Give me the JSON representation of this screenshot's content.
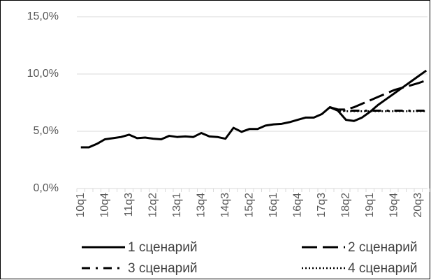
{
  "chart_data": {
    "type": "line",
    "categories": [
      "10q1",
      null,
      null,
      "10q4",
      null,
      null,
      "11q3",
      null,
      null,
      "12q2",
      null,
      null,
      "13q1",
      null,
      null,
      "13q4",
      null,
      null,
      "14q3",
      null,
      null,
      "15q2",
      null,
      null,
      "16q1",
      null,
      null,
      "16q4",
      null,
      null,
      "17q3",
      null,
      null,
      "18q2",
      null,
      null,
      "19q1",
      null,
      null,
      "19q4",
      null,
      null,
      "20q3",
      null
    ],
    "series": [
      {
        "name": "1 сценарий",
        "color": "#000000",
        "values": [
          3.6,
          3.6,
          3.9,
          4.3,
          4.4,
          4.5,
          4.7,
          4.4,
          4.45,
          4.35,
          4.3,
          4.6,
          4.5,
          4.55,
          4.5,
          4.85,
          4.55,
          4.5,
          4.35,
          5.3,
          4.95,
          5.2,
          5.2,
          5.5,
          5.6,
          5.65,
          5.8,
          6.0,
          6.2,
          6.2,
          6.5,
          7.1,
          6.8,
          6.0,
          5.9,
          6.2,
          6.7,
          7.3,
          7.8,
          8.3,
          8.8,
          9.3,
          9.8,
          10.3
        ]
      },
      {
        "name": "2 сценарий",
        "color": "#000000",
        "values": [
          null,
          null,
          null,
          null,
          null,
          null,
          null,
          null,
          null,
          null,
          null,
          null,
          null,
          null,
          null,
          null,
          null,
          null,
          null,
          null,
          null,
          null,
          null,
          null,
          null,
          null,
          null,
          null,
          null,
          null,
          null,
          7.1,
          6.9,
          6.9,
          7.1,
          7.4,
          7.7,
          8.0,
          8.3,
          8.6,
          8.8,
          9.0,
          9.2,
          9.45
        ]
      },
      {
        "name": "3 сценарий",
        "color": "#000000",
        "values": [
          null,
          null,
          null,
          null,
          null,
          null,
          null,
          null,
          null,
          null,
          null,
          null,
          null,
          null,
          null,
          null,
          null,
          null,
          null,
          null,
          null,
          null,
          null,
          null,
          null,
          null,
          null,
          null,
          null,
          null,
          null,
          7.1,
          6.85,
          6.8,
          6.8,
          6.8,
          6.8,
          6.8,
          6.8,
          6.8,
          6.8,
          6.8,
          6.8,
          6.8
        ]
      },
      {
        "name": "4 сценарий",
        "color": "#000000",
        "values": [
          null,
          null,
          null,
          null,
          null,
          null,
          null,
          null,
          null,
          null,
          null,
          null,
          null,
          null,
          null,
          null,
          null,
          null,
          null,
          null,
          null,
          null,
          null,
          null,
          null,
          null,
          null,
          null,
          null,
          null,
          null,
          7.1,
          6.8,
          6.75,
          6.75,
          6.75,
          6.75,
          6.75,
          6.75,
          6.75,
          6.75,
          6.75,
          6.75,
          6.75
        ]
      }
    ],
    "ylim": [
      0,
      15
    ],
    "yticks": [
      {
        "value": 0,
        "label": "0,0%"
      },
      {
        "value": 5,
        "label": "5,0%"
      },
      {
        "value": 10,
        "label": "10,0%"
      },
      {
        "value": 15,
        "label": "15,0%"
      }
    ],
    "grid": true
  }
}
